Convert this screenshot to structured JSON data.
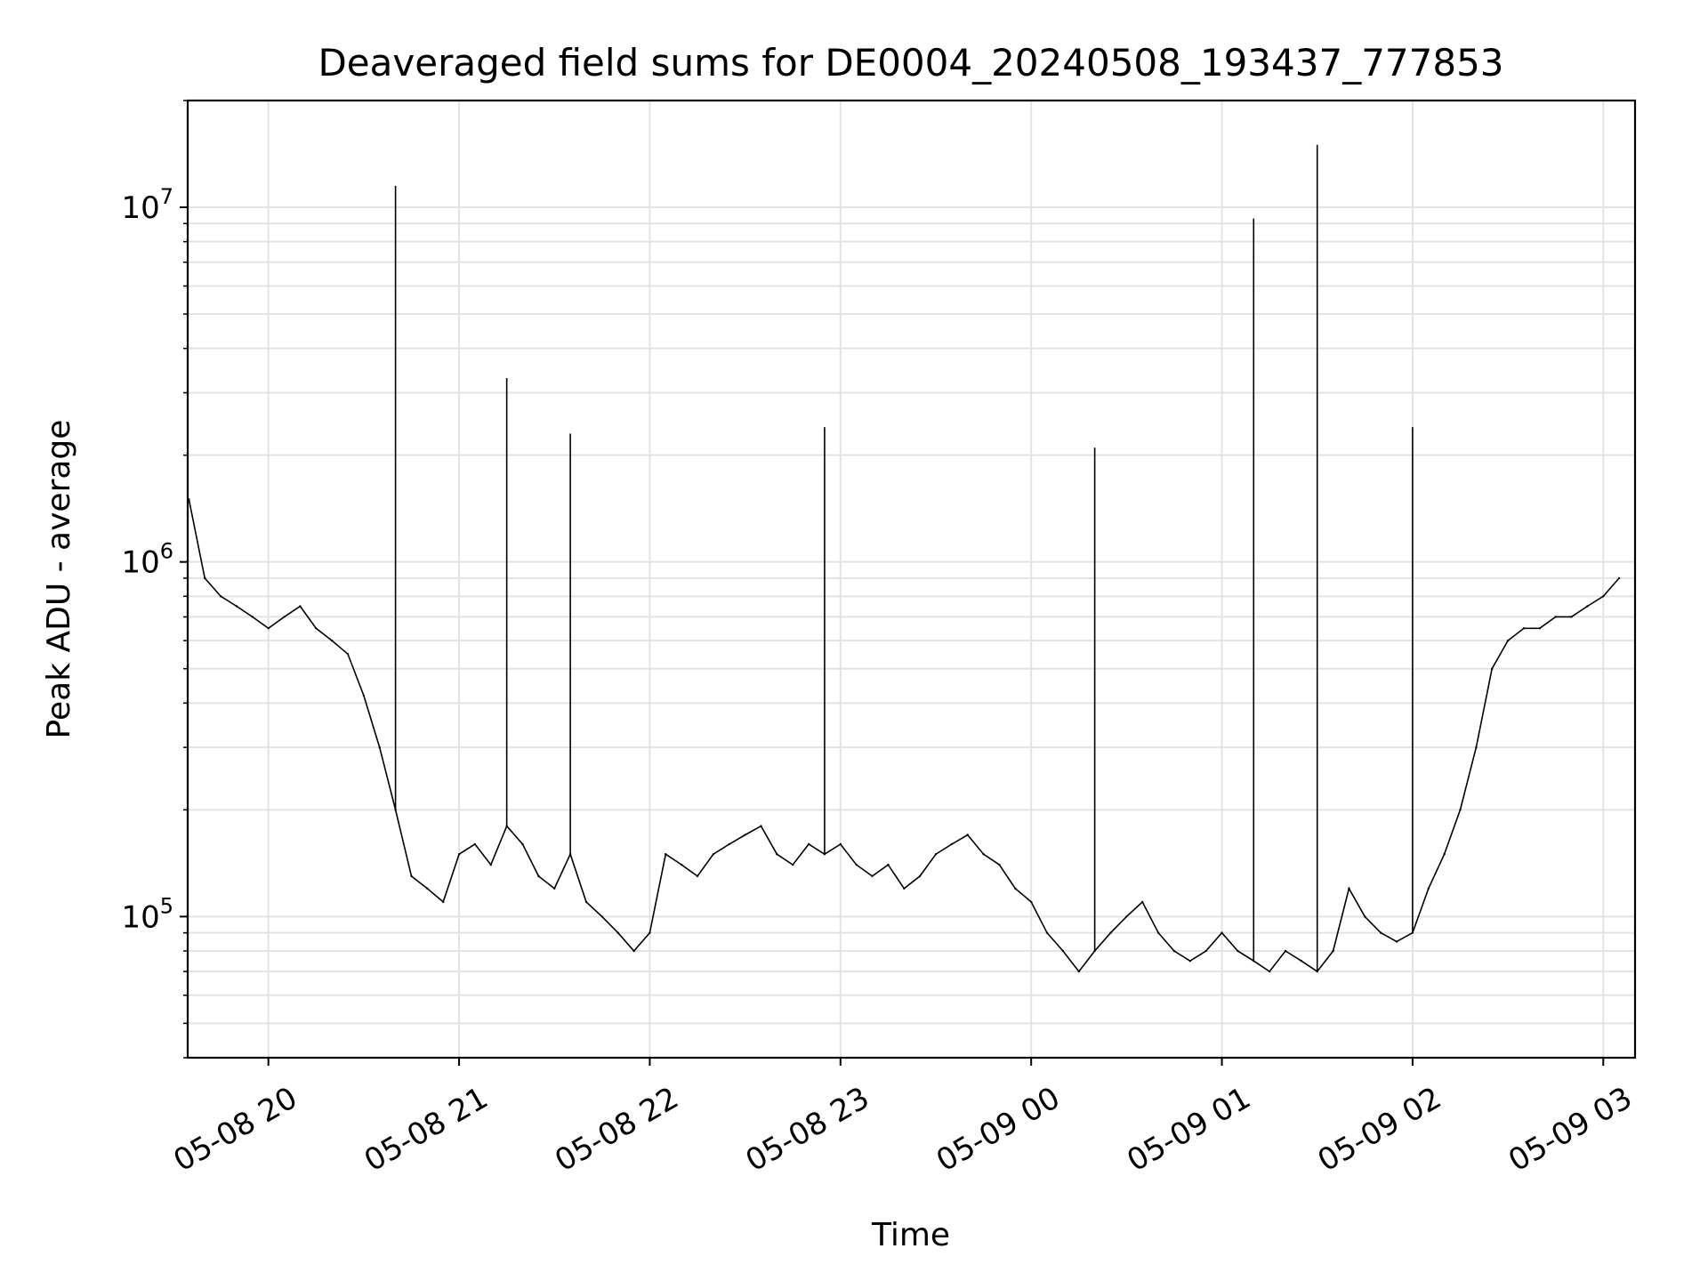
{
  "chart_data": {
    "type": "line",
    "title": "Deaveraged field sums for DE0004_20240508_193437_777853",
    "xlabel": "Time",
    "ylabel": "Peak ADU - average",
    "yscale": "log",
    "grid": true,
    "legend": "none",
    "xlim": [
      "2024-05-08T19:34:37",
      "2024-05-09T03:10:00"
    ],
    "ylim": [
      40000,
      20000000
    ],
    "x_ticks": [
      {
        "time": "2024-05-08T20:00:00",
        "label": "05-08 20"
      },
      {
        "time": "2024-05-08T21:00:00",
        "label": "05-08 21"
      },
      {
        "time": "2024-05-08T22:00:00",
        "label": "05-08 22"
      },
      {
        "time": "2024-05-08T23:00:00",
        "label": "05-08 23"
      },
      {
        "time": "2024-05-09T00:00:00",
        "label": "05-09 00"
      },
      {
        "time": "2024-05-09T01:00:00",
        "label": "05-09 01"
      },
      {
        "time": "2024-05-09T02:00:00",
        "label": "05-09 02"
      },
      {
        "time": "2024-05-09T03:00:00",
        "label": "05-09 03"
      }
    ],
    "y_ticks": [
      {
        "value": 100000,
        "base": "10",
        "exp": "5"
      },
      {
        "value": 1000000,
        "base": "10",
        "exp": "6"
      },
      {
        "value": 10000000,
        "base": "10",
        "exp": "7"
      }
    ],
    "series": [
      {
        "color": "#000000",
        "x": [
          "2024-05-08T19:35:00",
          "2024-05-08T19:40:00",
          "2024-05-08T19:45:00",
          "2024-05-08T19:50:00",
          "2024-05-08T19:55:00",
          "2024-05-08T20:00:00",
          "2024-05-08T20:05:00",
          "2024-05-08T20:10:00",
          "2024-05-08T20:15:00",
          "2024-05-08T20:20:00",
          "2024-05-08T20:25:00",
          "2024-05-08T20:30:00",
          "2024-05-08T20:35:00",
          "2024-05-08T20:40:00",
          "2024-05-08T20:45:00",
          "2024-05-08T20:50:00",
          "2024-05-08T20:55:00",
          "2024-05-08T21:00:00",
          "2024-05-08T21:05:00",
          "2024-05-08T21:10:00",
          "2024-05-08T21:15:00",
          "2024-05-08T21:20:00",
          "2024-05-08T21:25:00",
          "2024-05-08T21:30:00",
          "2024-05-08T21:35:00",
          "2024-05-08T21:40:00",
          "2024-05-08T21:45:00",
          "2024-05-08T21:50:00",
          "2024-05-08T21:55:00",
          "2024-05-08T22:00:00",
          "2024-05-08T22:05:00",
          "2024-05-08T22:10:00",
          "2024-05-08T22:15:00",
          "2024-05-08T22:20:00",
          "2024-05-08T22:25:00",
          "2024-05-08T22:30:00",
          "2024-05-08T22:35:00",
          "2024-05-08T22:40:00",
          "2024-05-08T22:45:00",
          "2024-05-08T22:50:00",
          "2024-05-08T22:55:00",
          "2024-05-08T23:00:00",
          "2024-05-08T23:05:00",
          "2024-05-08T23:10:00",
          "2024-05-08T23:15:00",
          "2024-05-08T23:20:00",
          "2024-05-08T23:25:00",
          "2024-05-08T23:30:00",
          "2024-05-08T23:35:00",
          "2024-05-08T23:40:00",
          "2024-05-08T23:45:00",
          "2024-05-08T23:50:00",
          "2024-05-08T23:55:00",
          "2024-05-09T00:00:00",
          "2024-05-09T00:05:00",
          "2024-05-09T00:10:00",
          "2024-05-09T00:15:00",
          "2024-05-09T00:20:00",
          "2024-05-09T00:25:00",
          "2024-05-09T00:30:00",
          "2024-05-09T00:35:00",
          "2024-05-09T00:40:00",
          "2024-05-09T00:45:00",
          "2024-05-09T00:50:00",
          "2024-05-09T00:55:00",
          "2024-05-09T01:00:00",
          "2024-05-09T01:05:00",
          "2024-05-09T01:10:00",
          "2024-05-09T01:15:00",
          "2024-05-09T01:20:00",
          "2024-05-09T01:25:00",
          "2024-05-09T01:30:00",
          "2024-05-09T01:35:00",
          "2024-05-09T01:40:00",
          "2024-05-09T01:45:00",
          "2024-05-09T01:50:00",
          "2024-05-09T01:55:00",
          "2024-05-09T02:00:00",
          "2024-05-09T02:05:00",
          "2024-05-09T02:10:00",
          "2024-05-09T02:15:00",
          "2024-05-09T02:20:00",
          "2024-05-09T02:25:00",
          "2024-05-09T02:30:00",
          "2024-05-09T02:35:00",
          "2024-05-09T02:40:00",
          "2024-05-09T02:45:00",
          "2024-05-09T02:50:00",
          "2024-05-09T02:55:00",
          "2024-05-09T03:00:00",
          "2024-05-09T03:05:00"
        ],
        "y": [
          1500000,
          900000,
          800000,
          750000,
          700000,
          650000,
          700000,
          750000,
          650000,
          600000,
          550000,
          420000,
          300000,
          200000,
          130000,
          120000,
          110000,
          150000,
          160000,
          140000,
          180000,
          160000,
          130000,
          120000,
          150000,
          110000,
          100000,
          90000,
          80000,
          90000,
          150000,
          140000,
          130000,
          150000,
          160000,
          170000,
          180000,
          150000,
          140000,
          160000,
          150000,
          160000,
          140000,
          130000,
          140000,
          120000,
          130000,
          150000,
          160000,
          170000,
          150000,
          140000,
          120000,
          110000,
          90000,
          80000,
          70000,
          80000,
          90000,
          100000,
          110000,
          90000,
          80000,
          75000,
          80000,
          90000,
          80000,
          75000,
          70000,
          80000,
          75000,
          70000,
          80000,
          120000,
          100000,
          90000,
          85000,
          90000,
          120000,
          150000,
          200000,
          300000,
          500000,
          600000,
          650000,
          650000,
          700000,
          700000,
          750000,
          800000,
          900000
        ],
        "spike_x": [
          "2024-05-08T20:40:00",
          "2024-05-08T21:15:00",
          "2024-05-08T21:35:00",
          "2024-05-08T22:55:00",
          "2024-05-09T00:20:00",
          "2024-05-09T01:10:00",
          "2024-05-09T01:30:00",
          "2024-05-09T02:00:00"
        ],
        "spike_y": [
          11500000,
          3300000,
          2300000,
          2400000,
          2100000,
          9300000,
          15000000,
          2400000
        ]
      }
    ]
  }
}
